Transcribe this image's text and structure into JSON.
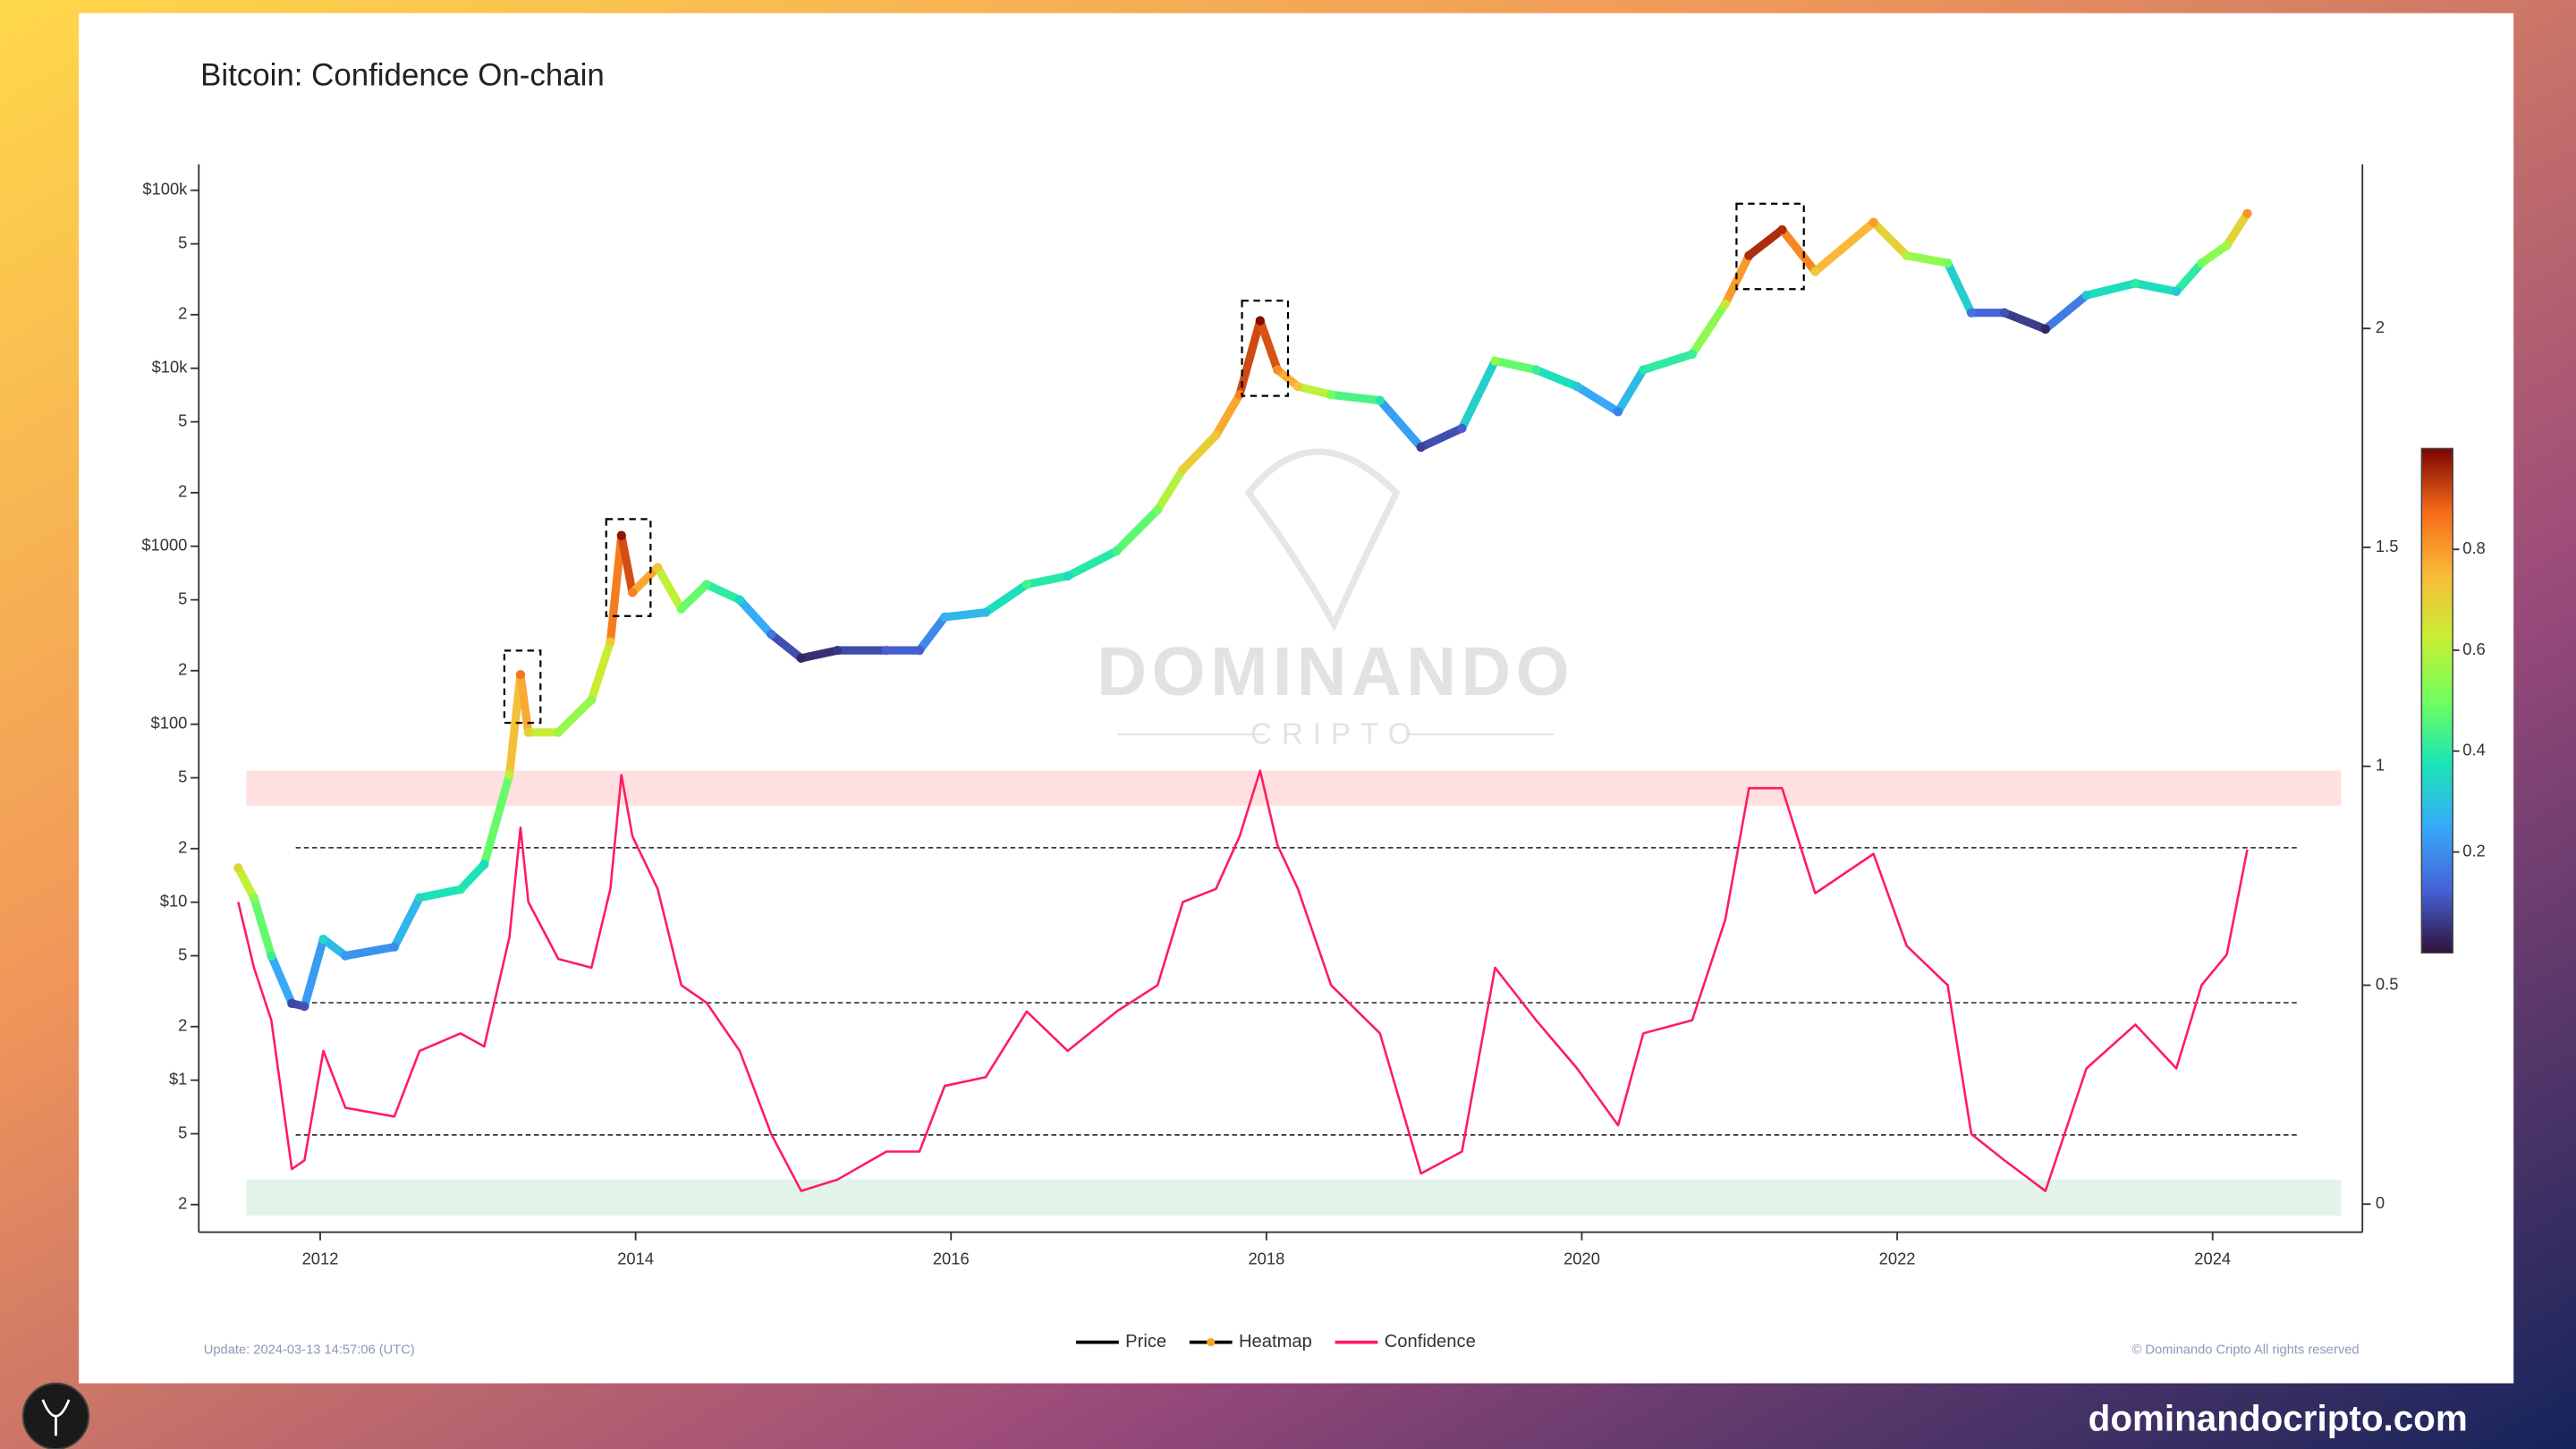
{
  "chart_data": {
    "type": "line",
    "title": "Bitcoin: Confidence On-chain",
    "update_note": "Update: 2024-03-13 14:57:06 (UTC)",
    "copyright": "© Dominando Cripto All rights reserved",
    "log_y": true,
    "xlim": [
      2011.23,
      2024.95
    ],
    "xticks": [
      2012,
      2014,
      2016,
      2018,
      2020,
      2022,
      2024
    ],
    "ylim": [
      0.14,
      140000
    ],
    "yticks": [
      {
        "value": 0.2,
        "label": "2"
      },
      {
        "value": 0.5,
        "label": "5"
      },
      {
        "value": 1,
        "label": "$1"
      },
      2,
      5,
      {
        "value": 10,
        "label": "$10"
      },
      {
        "value": 20,
        "label": "2"
      },
      {
        "value": 50,
        "label": "5"
      },
      {
        "value": 100,
        "label": "$100"
      },
      {
        "value": 200,
        "label": "2"
      },
      {
        "value": 500,
        "label": "5"
      },
      {
        "value": 1000,
        "label": "$1000"
      },
      {
        "value": 2000,
        "label": "2"
      },
      {
        "value": 5000,
        "label": "5"
      },
      {
        "value": 10000,
        "label": "$10k"
      },
      {
        "value": 20000,
        "label": "2"
      },
      {
        "value": 50000,
        "label": "5"
      },
      {
        "value": 100000,
        "label": "$100k"
      }
    ],
    "y2lim": [
      -0.064,
      2.375
    ],
    "y2ticks": [
      0,
      0.5,
      1,
      1.5,
      2
    ],
    "x": [
      2011.48,
      2011.58,
      2011.69,
      2011.82,
      2011.9,
      2012.02,
      2012.16,
      2012.47,
      2012.63,
      2012.89,
      2013.04,
      2013.2,
      2013.27,
      2013.32,
      2013.51,
      2013.72,
      2013.84,
      2013.91,
      2013.98,
      2014.14,
      2014.29,
      2014.45,
      2014.66,
      2014.86,
      2015.05,
      2015.28,
      2015.59,
      2015.8,
      2015.96,
      2016.22,
      2016.48,
      2016.74,
      2017.05,
      2017.31,
      2017.47,
      2017.68,
      2017.83,
      2017.96,
      2018.07,
      2018.2,
      2018.41,
      2018.72,
      2018.98,
      2019.24,
      2019.45,
      2019.71,
      2019.97,
      2020.23,
      2020.39,
      2020.7,
      2020.91,
      2021.06,
      2021.27,
      2021.48,
      2021.85,
      2022.06,
      2022.32,
      2022.47,
      2022.68,
      2022.94,
      2023.2,
      2023.51,
      2023.77,
      2023.93,
      2024.09,
      2024.22
    ],
    "series": [
      {
        "name": "Price",
        "color": "#000000",
        "values": [
          15.6,
          10.6,
          5,
          2.7,
          2.6,
          6.2,
          5,
          5.6,
          10.6,
          11.8,
          16.3,
          52,
          190,
          90,
          90,
          137,
          290,
          1150,
          550,
          760,
          445,
          610,
          500,
          320,
          235,
          260,
          260,
          260,
          400,
          425,
          610,
          680,
          940,
          1600,
          2700,
          4200,
          7100,
          18500,
          9800,
          7900,
          7100,
          6600,
          3600,
          4600,
          11000,
          9800,
          7900,
          5700,
          9800,
          12000,
          23000,
          43000,
          60000,
          35000,
          66000,
          43000,
          39000,
          20500,
          20500,
          16600,
          25700,
          30000,
          27000,
          39000,
          49000,
          74000
        ]
      },
      {
        "name": "Confidence",
        "color": "#ff1a66",
        "axis": "y2",
        "values": [
          0.69,
          0.54,
          0.42,
          0.08,
          0.1,
          0.35,
          0.22,
          0.2,
          0.35,
          0.39,
          0.36,
          0.61,
          0.86,
          0.69,
          0.56,
          0.54,
          0.72,
          0.98,
          0.84,
          0.72,
          0.5,
          0.46,
          0.35,
          0.16,
          0.03,
          0.056,
          0.12,
          0.12,
          0.27,
          0.29,
          0.44,
          0.35,
          0.44,
          0.5,
          0.69,
          0.72,
          0.84,
          0.99,
          0.82,
          0.72,
          0.5,
          0.39,
          0.07,
          0.12,
          0.54,
          0.42,
          0.31,
          0.18,
          0.39,
          0.42,
          0.65,
          0.95,
          0.95,
          0.71,
          0.8,
          0.59,
          0.5,
          0.16,
          0.1,
          0.03,
          0.31,
          0.41,
          0.31,
          0.5,
          0.57,
          0.81
        ]
      }
    ],
    "heatmap": {
      "name": "Heatmap",
      "color": "#f5a623",
      "lim": [
        0,
        1
      ],
      "ticks": [
        0.2,
        0.4,
        0.6,
        0.8
      ],
      "colorscale": [
        "#30123b",
        "#4662d7",
        "#36aaf9",
        "#1ae4b6",
        "#72fe5e",
        "#c8ef34",
        "#faba39",
        "#f66b19",
        "#7a0403"
      ]
    },
    "bands": [
      {
        "range": [
          0.91,
          0.99
        ],
        "color": "#ffdfe0"
      },
      {
        "range": [
          -0.026,
          0.056
        ],
        "color": "#e2f3e8"
      }
    ],
    "reference_lines": [
      0.814,
      0.46,
      0.158
    ]
  },
  "watermark": {
    "main": "DOMINANDO",
    "sub": "CRIPTO"
  },
  "footer": {
    "site": "dominandocripto.com"
  }
}
